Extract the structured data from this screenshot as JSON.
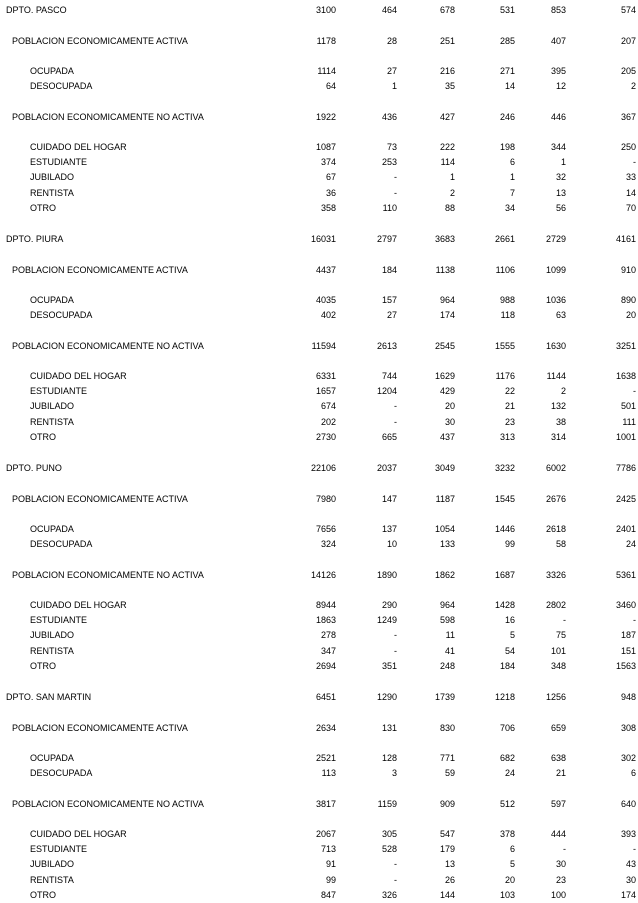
{
  "departments": [
    {
      "name": "DPTO.  PASCO",
      "values": [
        "3100",
        "464",
        "678",
        "531",
        "853",
        "574"
      ],
      "rows": [
        {
          "label": "POBLACION ECONOMICAMENTE ACTIVA",
          "level": 1,
          "values": [
            "1178",
            "28",
            "251",
            "285",
            "407",
            "207"
          ]
        },
        {
          "label": "OCUPADA",
          "level": 2,
          "values": [
            "1114",
            "27",
            "216",
            "271",
            "395",
            "205"
          ]
        },
        {
          "label": "DESOCUPADA",
          "level": 2,
          "values": [
            "64",
            "1",
            "35",
            "14",
            "12",
            "2"
          ]
        },
        {
          "label": "POBLACION ECONOMICAMENTE NO ACTIVA",
          "level": 1,
          "values": [
            "1922",
            "436",
            "427",
            "246",
            "446",
            "367"
          ]
        },
        {
          "label": "CUIDADO DEL HOGAR",
          "level": 2,
          "values": [
            "1087",
            "73",
            "222",
            "198",
            "344",
            "250"
          ]
        },
        {
          "label": "ESTUDIANTE",
          "level": 2,
          "values": [
            "374",
            "253",
            "114",
            "6",
            "1",
            "-"
          ]
        },
        {
          "label": "JUBILADO",
          "level": 2,
          "values": [
            "67",
            "-",
            "1",
            "1",
            "32",
            "33"
          ]
        },
        {
          "label": "RENTISTA",
          "level": 2,
          "values": [
            "36",
            "-",
            "2",
            "7",
            "13",
            "14"
          ]
        },
        {
          "label": "OTRO",
          "level": 2,
          "values": [
            "358",
            "110",
            "88",
            "34",
            "56",
            "70"
          ]
        }
      ]
    },
    {
      "name": "DPTO.  PIURA",
      "values": [
        "16031",
        "2797",
        "3683",
        "2661",
        "2729",
        "4161"
      ],
      "rows": [
        {
          "label": "POBLACION ECONOMICAMENTE ACTIVA",
          "level": 1,
          "values": [
            "4437",
            "184",
            "1138",
            "1106",
            "1099",
            "910"
          ]
        },
        {
          "label": "OCUPADA",
          "level": 2,
          "values": [
            "4035",
            "157",
            "964",
            "988",
            "1036",
            "890"
          ]
        },
        {
          "label": "DESOCUPADA",
          "level": 2,
          "values": [
            "402",
            "27",
            "174",
            "118",
            "63",
            "20"
          ]
        },
        {
          "label": "POBLACION ECONOMICAMENTE NO ACTIVA",
          "level": 1,
          "values": [
            "11594",
            "2613",
            "2545",
            "1555",
            "1630",
            "3251"
          ]
        },
        {
          "label": "CUIDADO DEL HOGAR",
          "level": 2,
          "values": [
            "6331",
            "744",
            "1629",
            "1176",
            "1144",
            "1638"
          ]
        },
        {
          "label": "ESTUDIANTE",
          "level": 2,
          "values": [
            "1657",
            "1204",
            "429",
            "22",
            "2",
            "-"
          ]
        },
        {
          "label": "JUBILADO",
          "level": 2,
          "values": [
            "674",
            "-",
            "20",
            "21",
            "132",
            "501"
          ]
        },
        {
          "label": "RENTISTA",
          "level": 2,
          "values": [
            "202",
            "-",
            "30",
            "23",
            "38",
            "111"
          ]
        },
        {
          "label": "OTRO",
          "level": 2,
          "values": [
            "2730",
            "665",
            "437",
            "313",
            "314",
            "1001"
          ]
        }
      ]
    },
    {
      "name": "DPTO.  PUNO",
      "values": [
        "22106",
        "2037",
        "3049",
        "3232",
        "6002",
        "7786"
      ],
      "rows": [
        {
          "label": "POBLACION ECONOMICAMENTE ACTIVA",
          "level": 1,
          "values": [
            "7980",
            "147",
            "1187",
            "1545",
            "2676",
            "2425"
          ]
        },
        {
          "label": "OCUPADA",
          "level": 2,
          "values": [
            "7656",
            "137",
            "1054",
            "1446",
            "2618",
            "2401"
          ]
        },
        {
          "label": "DESOCUPADA",
          "level": 2,
          "values": [
            "324",
            "10",
            "133",
            "99",
            "58",
            "24"
          ]
        },
        {
          "label": "POBLACION ECONOMICAMENTE NO ACTIVA",
          "level": 1,
          "values": [
            "14126",
            "1890",
            "1862",
            "1687",
            "3326",
            "5361"
          ]
        },
        {
          "label": "CUIDADO DEL HOGAR",
          "level": 2,
          "values": [
            "8944",
            "290",
            "964",
            "1428",
            "2802",
            "3460"
          ]
        },
        {
          "label": "ESTUDIANTE",
          "level": 2,
          "values": [
            "1863",
            "1249",
            "598",
            "16",
            "-",
            "-"
          ]
        },
        {
          "label": "JUBILADO",
          "level": 2,
          "values": [
            "278",
            "-",
            "11",
            "5",
            "75",
            "187"
          ]
        },
        {
          "label": "RENTISTA",
          "level": 2,
          "values": [
            "347",
            "-",
            "41",
            "54",
            "101",
            "151"
          ]
        },
        {
          "label": "OTRO",
          "level": 2,
          "values": [
            "2694",
            "351",
            "248",
            "184",
            "348",
            "1563"
          ]
        }
      ]
    },
    {
      "name": "DPTO.  SAN MARTIN",
      "values": [
        "6451",
        "1290",
        "1739",
        "1218",
        "1256",
        "948"
      ],
      "rows": [
        {
          "label": "POBLACION ECONOMICAMENTE ACTIVA",
          "level": 1,
          "values": [
            "2634",
            "131",
            "830",
            "706",
            "659",
            "308"
          ]
        },
        {
          "label": "OCUPADA",
          "level": 2,
          "values": [
            "2521",
            "128",
            "771",
            "682",
            "638",
            "302"
          ]
        },
        {
          "label": "DESOCUPADA",
          "level": 2,
          "values": [
            "113",
            "3",
            "59",
            "24",
            "21",
            "6"
          ]
        },
        {
          "label": "POBLACION ECONOMICAMENTE NO ACTIVA",
          "level": 1,
          "values": [
            "3817",
            "1159",
            "909",
            "512",
            "597",
            "640"
          ]
        },
        {
          "label": "CUIDADO DEL HOGAR",
          "level": 2,
          "values": [
            "2067",
            "305",
            "547",
            "378",
            "444",
            "393"
          ]
        },
        {
          "label": "ESTUDIANTE",
          "level": 2,
          "values": [
            "713",
            "528",
            "179",
            "6",
            "-",
            "-"
          ]
        },
        {
          "label": "JUBILADO",
          "level": 2,
          "values": [
            "91",
            "-",
            "13",
            "5",
            "30",
            "43"
          ]
        },
        {
          "label": "RENTISTA",
          "level": 2,
          "values": [
            "99",
            "-",
            "26",
            "20",
            "23",
            "30"
          ]
        },
        {
          "label": "OTRO",
          "level": 2,
          "values": [
            "847",
            "326",
            "144",
            "103",
            "100",
            "174"
          ]
        }
      ]
    }
  ]
}
